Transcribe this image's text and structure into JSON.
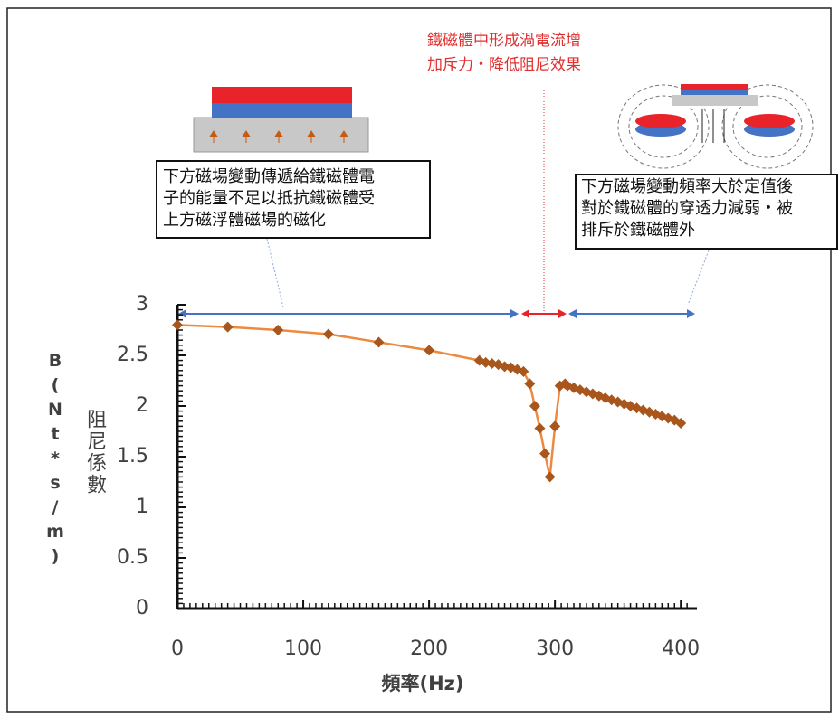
{
  "chart_data": {
    "type": "line",
    "x_label": "頻率(Hz)",
    "y_label": "阻尼係數",
    "y_label_unit": "B(Nt*s/m)",
    "x": [
      0,
      40,
      80,
      120,
      160,
      200,
      240,
      245,
      250,
      255,
      260,
      265,
      270,
      275,
      280,
      284,
      288,
      292,
      296,
      300,
      304,
      308,
      310,
      315,
      320,
      325,
      330,
      335,
      340,
      345,
      350,
      355,
      360,
      365,
      370,
      375,
      380,
      385,
      390,
      395,
      400
    ],
    "series": [
      {
        "color": "#ed8a3f",
        "marker_color": "#a8561c",
        "values": [
          2.8,
          2.78,
          2.75,
          2.71,
          2.63,
          2.55,
          2.45,
          2.43,
          2.42,
          2.41,
          2.39,
          2.38,
          2.36,
          2.34,
          2.22,
          2.0,
          1.78,
          1.53,
          1.3,
          1.8,
          2.2,
          2.22,
          2.2,
          2.18,
          2.16,
          2.14,
          2.12,
          2.1,
          2.08,
          2.06,
          2.04,
          2.02,
          2.0,
          1.98,
          1.96,
          1.94,
          1.92,
          1.9,
          1.88,
          1.86,
          1.83
        ]
      }
    ],
    "xlim": [
      0,
      420
    ],
    "ylim": [
      0,
      3
    ],
    "xticks": [
      0,
      100,
      200,
      300,
      400
    ],
    "yticks": [
      0,
      0.5,
      1,
      1.5,
      2,
      2.5,
      3
    ],
    "annotations": [
      {
        "lines": [
          "鐵磁體中形成渦電流增",
          "加斥力・降低阻尼效果"
        ]
      },
      {
        "lines": [
          "下方磁場變動傳遞給鐵磁體電",
          "子的能量不足以抵抗鐵磁體受",
          "上方磁浮體磁場的磁化"
        ]
      },
      {
        "lines": [
          "下方磁場變動頻率大於定值後",
          "對於鐵磁體的穿透力減弱・被",
          "排斥於鐵磁體外"
        ]
      }
    ]
  }
}
